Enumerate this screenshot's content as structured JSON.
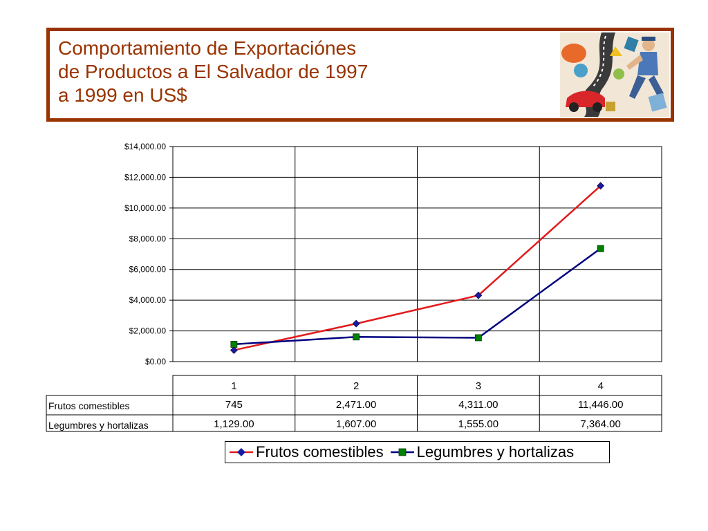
{
  "title_lines": [
    "Comportamiento de Exportaciónes",
    "de Productos a El Salvador de 1997",
    "a 1999 en US$"
  ],
  "colors": {
    "title": "#993300",
    "frame": "#993300",
    "series_frutos": "#E31A1C",
    "series_frutos_marker": "#1A1AA0",
    "series_legumbres": "#000080",
    "series_legumbres_marker": "#008000"
  },
  "clipart_icon": "runner-collage-icon",
  "chart_data": {
    "type": "line",
    "categories": [
      "1",
      "2",
      "3",
      "4"
    ],
    "ylim": [
      0,
      14000
    ],
    "y_ticks": [
      {
        "value": 0,
        "label": "$0.00"
      },
      {
        "value": 2000,
        "label": "$2,000.00"
      },
      {
        "value": 4000,
        "label": "$4,000.00"
      },
      {
        "value": 6000,
        "label": "$6,000.00"
      },
      {
        "value": 8000,
        "label": "$8,000.00"
      },
      {
        "value": 10000,
        "label": "$10,000.00"
      },
      {
        "value": 12000,
        "label": "$12,000.00"
      },
      {
        "value": 14000,
        "label": "$14,000.00"
      }
    ],
    "grid": true,
    "legend_position": "bottom",
    "series": [
      {
        "name": "Frutos comestibles",
        "values": [
          745,
          2471,
          4311,
          11446
        ],
        "table_labels": [
          "745",
          "2,471.00",
          "4,311.00",
          "11,446.00"
        ],
        "color": "#E31A1C",
        "marker": "diamond",
        "marker_color": "#1A1AA0"
      },
      {
        "name": "Legumbres y hortalizas",
        "values": [
          1129,
          1607,
          1555,
          7364
        ],
        "table_labels": [
          "1,129.00",
          "1,607.00",
          "1,555.00",
          "7,364.00"
        ],
        "color": "#000080",
        "marker": "square",
        "marker_color": "#008000"
      }
    ]
  }
}
